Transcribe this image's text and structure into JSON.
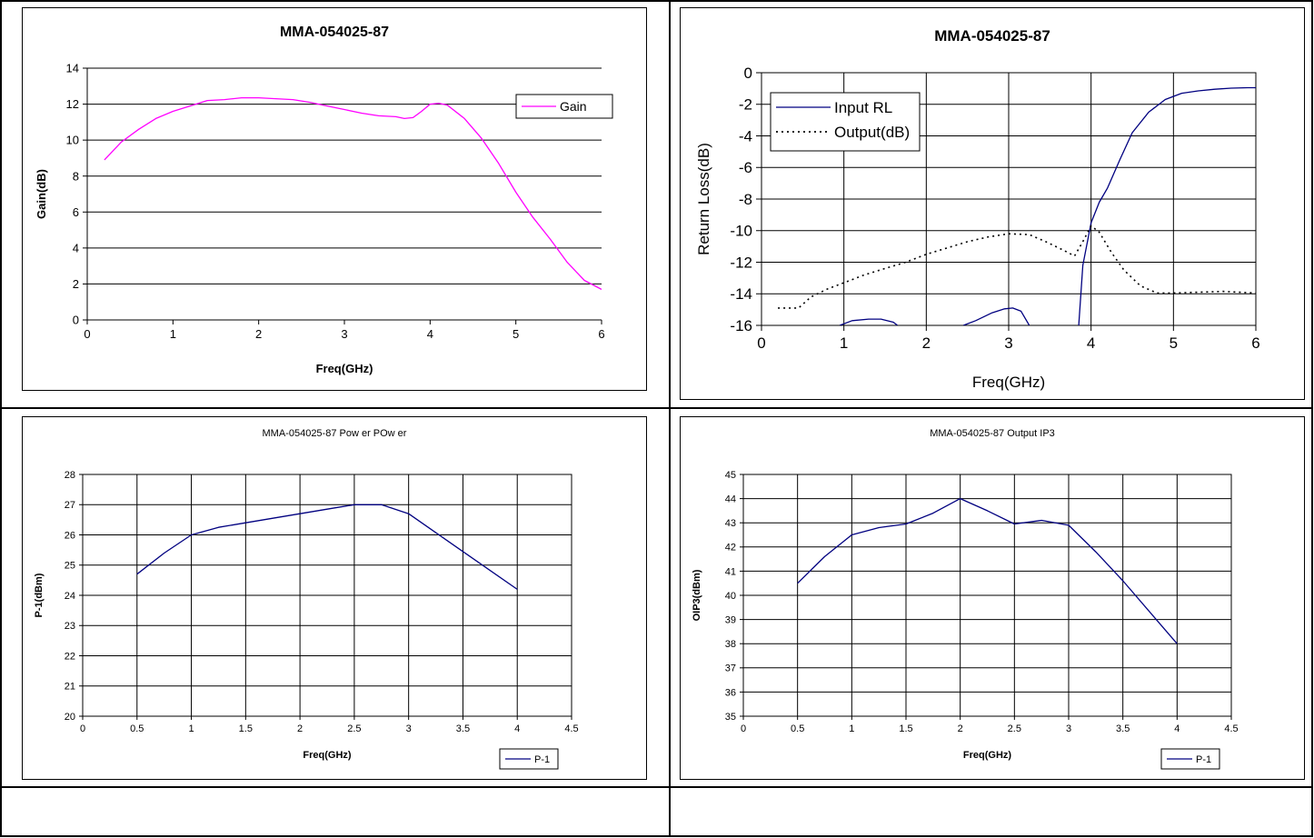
{
  "chart_data": [
    {
      "type": "line",
      "title": "MMA-054025-87",
      "xlabel": "Freq(GHz)",
      "ylabel": "Gain(dB)",
      "xlim": [
        0,
        6
      ],
      "ylim": [
        0,
        14
      ],
      "x_ticks": [
        "0",
        "1",
        "2",
        "3",
        "4",
        "5",
        "6"
      ],
      "y_ticks": [
        "0",
        "2",
        "4",
        "6",
        "8",
        "10",
        "12",
        "14"
      ],
      "grid": "horizontal",
      "legend": "right",
      "series": [
        {
          "name": "Gain",
          "color": "#ff00ff",
          "dash": "solid",
          "x": [
            0.2,
            0.4,
            0.6,
            0.8,
            1.0,
            1.2,
            1.4,
            1.6,
            1.8,
            2.0,
            2.2,
            2.4,
            2.6,
            2.8,
            3.0,
            3.2,
            3.4,
            3.6,
            3.7,
            3.8,
            3.9,
            4.0,
            4.1,
            4.2,
            4.4,
            4.6,
            4.8,
            5.0,
            5.2,
            5.4,
            5.6,
            5.8,
            6.0
          ],
          "y": [
            8.9,
            9.9,
            10.6,
            11.2,
            11.6,
            11.9,
            12.2,
            12.25,
            12.35,
            12.35,
            12.3,
            12.25,
            12.1,
            11.9,
            11.7,
            11.5,
            11.35,
            11.3,
            11.2,
            11.25,
            11.6,
            12.0,
            12.05,
            11.95,
            11.2,
            10.1,
            8.7,
            7.1,
            5.7,
            4.5,
            3.2,
            2.2,
            1.7
          ]
        }
      ]
    },
    {
      "type": "line",
      "title": "MMA-054025-87",
      "xlabel": "Freq(GHz)",
      "ylabel": "Return Loss(dB)",
      "xlim": [
        0,
        6
      ],
      "ylim": [
        -16,
        0
      ],
      "x_ticks": [
        "0",
        "1",
        "2",
        "3",
        "4",
        "5",
        "6"
      ],
      "y_ticks": [
        "0",
        "-2",
        "-4",
        "-6",
        "-8",
        "-10",
        "-12",
        "-14",
        "-16"
      ],
      "grid": "both",
      "legend": "top-left",
      "series": [
        {
          "name": "Input RL",
          "color": "#000080",
          "dash": "solid",
          "segments": [
            {
              "x": [
                0.95,
                1.1,
                1.3,
                1.45,
                1.6,
                1.65
              ],
              "y": [
                -16,
                -15.7,
                -15.6,
                -15.6,
                -15.8,
                -16
              ]
            },
            {
              "x": [
                2.45,
                2.6,
                2.8,
                2.95,
                3.05,
                3.15,
                3.25
              ],
              "y": [
                -16,
                -15.7,
                -15.2,
                -14.95,
                -14.9,
                -15.1,
                -16
              ]
            },
            {
              "x": [
                3.85,
                3.9,
                4.0,
                4.1,
                4.2,
                4.35,
                4.5,
                4.7,
                4.9,
                5.1,
                5.3,
                5.5,
                5.7,
                5.9,
                6.0
              ],
              "y": [
                -16,
                -12.2,
                -9.5,
                -8.2,
                -7.3,
                -5.5,
                -3.8,
                -2.5,
                -1.7,
                -1.3,
                -1.15,
                -1.05,
                -0.98,
                -0.95,
                -0.95
              ]
            }
          ]
        },
        {
          "name": "Output(dB)",
          "color": "#000000",
          "dash": "dotted",
          "segments": [
            {
              "x": [
                0.2,
                0.45,
                0.6,
                0.8,
                1.0,
                1.25,
                1.5,
                1.75,
                2.0,
                2.25,
                2.5,
                2.75,
                3.0,
                3.25,
                3.45,
                3.65,
                3.8,
                3.9,
                4.0,
                4.1,
                4.25,
                4.4,
                4.6,
                4.8,
                5.0,
                5.3,
                5.6,
                6.0
              ],
              "y": [
                -14.9,
                -14.9,
                -14.2,
                -13.7,
                -13.3,
                -12.8,
                -12.4,
                -12.0,
                -11.5,
                -11.1,
                -10.7,
                -10.4,
                -10.2,
                -10.25,
                -10.7,
                -11.2,
                -11.6,
                -10.7,
                -9.7,
                -10.1,
                -11.4,
                -12.5,
                -13.5,
                -13.95,
                -13.95,
                -13.9,
                -13.85,
                -13.95
              ]
            }
          ]
        }
      ]
    },
    {
      "type": "line",
      "title": "MMA-054025-87 Pow er POw er",
      "xlabel": "Freq(GHz)",
      "ylabel": "P-1(dBm)",
      "xlim": [
        0,
        4.5
      ],
      "ylim": [
        20,
        28
      ],
      "x_ticks": [
        "0",
        "0.5",
        "1",
        "1.5",
        "2",
        "2.5",
        "3",
        "3.5",
        "4",
        "4.5"
      ],
      "y_ticks": [
        "20",
        "21",
        "22",
        "23",
        "24",
        "25",
        "26",
        "27",
        "28"
      ],
      "grid": "both",
      "legend": "bottom-right",
      "series": [
        {
          "name": "P-1",
          "color": "#000080",
          "dash": "solid",
          "x": [
            0.5,
            0.75,
            1.0,
            1.25,
            1.5,
            1.75,
            2.0,
            2.25,
            2.5,
            2.75,
            3.0,
            3.5,
            4.0
          ],
          "y": [
            24.7,
            25.4,
            26.0,
            26.25,
            26.4,
            26.55,
            26.7,
            26.85,
            27.0,
            27.0,
            26.7,
            25.45,
            24.2
          ]
        }
      ]
    },
    {
      "type": "line",
      "title": "MMA-054025-87 Output IP3",
      "xlabel": "Freq(GHz)",
      "ylabel": "OIP3(dBm)",
      "xlim": [
        0,
        4.5
      ],
      "ylim": [
        35,
        45
      ],
      "x_ticks": [
        "0",
        "0.5",
        "1",
        "1.5",
        "2",
        "2.5",
        "3",
        "3.5",
        "4",
        "4.5"
      ],
      "y_ticks": [
        "35",
        "36",
        "37",
        "38",
        "39",
        "40",
        "41",
        "42",
        "43",
        "44",
        "45"
      ],
      "grid": "both",
      "legend": "bottom-right",
      "series": [
        {
          "name": "P-1",
          "color": "#000080",
          "dash": "solid",
          "x": [
            0.5,
            0.75,
            1.0,
            1.25,
            1.5,
            1.75,
            2.0,
            2.25,
            2.5,
            2.75,
            3.0,
            3.25,
            3.5,
            4.0
          ],
          "y": [
            40.5,
            41.6,
            42.5,
            42.8,
            42.95,
            43.4,
            44.0,
            43.5,
            42.95,
            43.1,
            42.9,
            41.8,
            40.6,
            38.0
          ]
        }
      ]
    }
  ]
}
